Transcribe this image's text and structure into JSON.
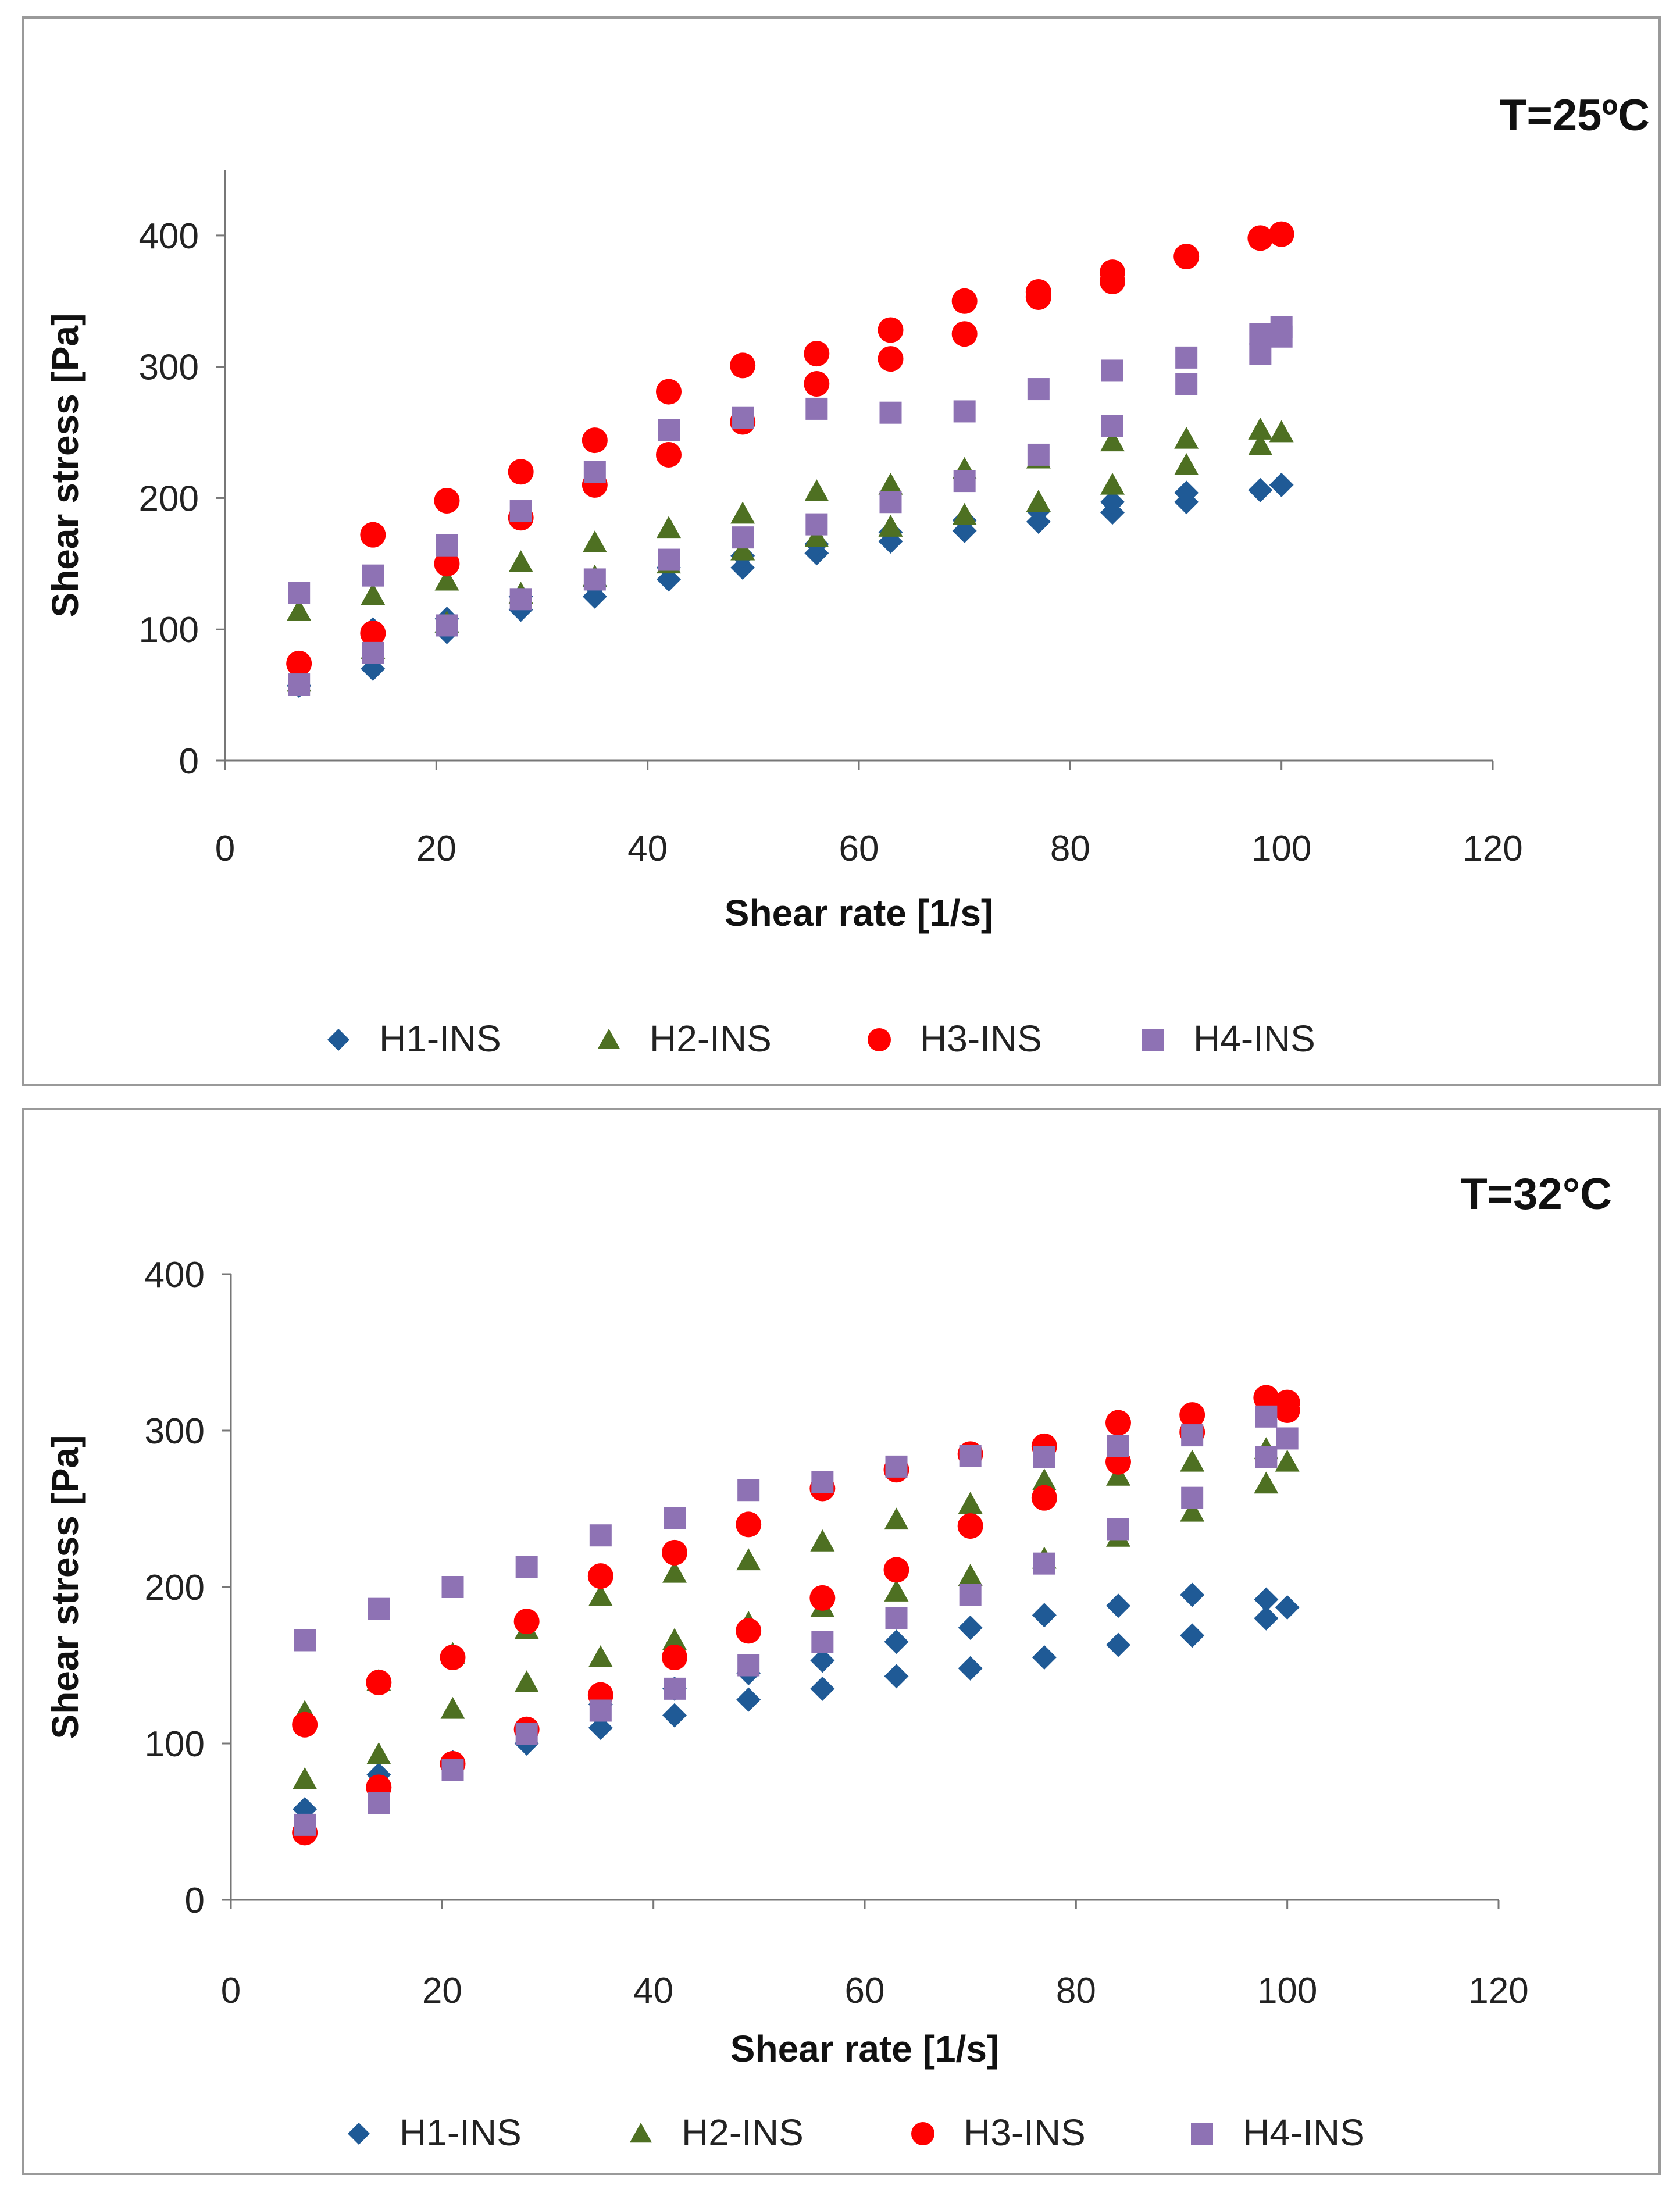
{
  "colors": {
    "H1-INS": "#1f5a96",
    "H2-INS": "#4e7022",
    "H3-INS": "#ff0000",
    "H4-INS": "#8e72b4"
  },
  "markers": {
    "H1-INS": "diamond",
    "H2-INS": "triangle",
    "H3-INS": "circle",
    "H4-INS": "square"
  },
  "chart_data": [
    {
      "type": "scatter",
      "annotation": "T=25ºC",
      "xlabel": "Shear rate [1/s]",
      "ylabel": "Shear stress [Pa]",
      "xlim": [
        0,
        120
      ],
      "ylim": [
        0,
        450
      ],
      "xticks": [
        0,
        20,
        40,
        60,
        80,
        100,
        120
      ],
      "yticks": [
        0,
        100,
        200,
        300,
        400
      ],
      "legend_position": "bottom",
      "series": [
        {
          "name": "H1-INS",
          "points": [
            [
              7,
              57
            ],
            [
              14,
              70
            ],
            [
              14,
              100
            ],
            [
              21,
              98
            ],
            [
              21,
              108
            ],
            [
              28,
              115
            ],
            [
              28,
              125
            ],
            [
              35,
              125
            ],
            [
              35,
              133
            ],
            [
              42,
              138
            ],
            [
              42,
              147
            ],
            [
              49,
              147
            ],
            [
              49,
              156
            ],
            [
              56,
              158
            ],
            [
              56,
              165
            ],
            [
              63,
              167
            ],
            [
              63,
              174
            ],
            [
              70,
              175
            ],
            [
              70,
              183
            ],
            [
              77,
              182
            ],
            [
              77,
              190
            ],
            [
              84,
              189
            ],
            [
              84,
              197
            ],
            [
              91,
              197
            ],
            [
              91,
              204
            ],
            [
              98,
              206
            ],
            [
              100,
              210
            ]
          ]
        },
        {
          "name": "H2-INS",
          "points": [
            [
              7,
              114
            ],
            [
              14,
              126
            ],
            [
              21,
              137
            ],
            [
              28,
              151
            ],
            [
              35,
              166
            ],
            [
              42,
              177
            ],
            [
              49,
              188
            ],
            [
              56,
              205
            ],
            [
              63,
              210
            ],
            [
              70,
              222
            ],
            [
              77,
              230
            ],
            [
              84,
              243
            ],
            [
              91,
              245
            ],
            [
              98,
              252
            ],
            [
              100,
              250
            ],
            [
              98,
              240
            ],
            [
              91,
              225
            ],
            [
              84,
              210
            ],
            [
              77,
              197
            ],
            [
              70,
              187
            ],
            [
              63,
              178
            ],
            [
              56,
              170
            ],
            [
              49,
              160
            ],
            [
              42,
              150
            ],
            [
              35,
              140
            ],
            [
              28,
              127
            ],
            [
              21,
              105
            ],
            [
              14,
              85
            ],
            [
              7,
              60
            ]
          ]
        },
        {
          "name": "H3-INS",
          "points": [
            [
              7,
              74
            ],
            [
              14,
              97
            ],
            [
              14,
              172
            ],
            [
              21,
              150
            ],
            [
              21,
              198
            ],
            [
              28,
              185
            ],
            [
              28,
              220
            ],
            [
              35,
              210
            ],
            [
              35,
              244
            ],
            [
              42,
              233
            ],
            [
              42,
              281
            ],
            [
              49,
              258
            ],
            [
              49,
              301
            ],
            [
              56,
              287
            ],
            [
              56,
              310
            ],
            [
              63,
              306
            ],
            [
              63,
              328
            ],
            [
              70,
              325
            ],
            [
              70,
              350
            ],
            [
              77,
              353
            ],
            [
              77,
              357
            ],
            [
              84,
              365
            ],
            [
              84,
              372
            ],
            [
              91,
              384
            ],
            [
              98,
              398
            ],
            [
              100,
              401
            ]
          ]
        },
        {
          "name": "H4-INS",
          "points": [
            [
              7,
              58
            ],
            [
              7,
              128
            ],
            [
              14,
              82
            ],
            [
              14,
              141
            ],
            [
              21,
              103
            ],
            [
              21,
              164
            ],
            [
              28,
              123
            ],
            [
              28,
              190
            ],
            [
              35,
              138
            ],
            [
              35,
              220
            ],
            [
              42,
              153
            ],
            [
              42,
              252
            ],
            [
              49,
              170
            ],
            [
              49,
              261
            ],
            [
              56,
              180
            ],
            [
              56,
              268
            ],
            [
              63,
              197
            ],
            [
              63,
              265
            ],
            [
              70,
              213
            ],
            [
              70,
              266
            ],
            [
              77,
              233
            ],
            [
              77,
              283
            ],
            [
              84,
              255
            ],
            [
              84,
              297
            ],
            [
              91,
              287
            ],
            [
              91,
              307
            ],
            [
              98,
              310
            ],
            [
              98,
              325
            ],
            [
              100,
              323
            ],
            [
              100,
              330
            ]
          ]
        }
      ]
    },
    {
      "type": "scatter",
      "annotation": "T=32°C",
      "xlabel": "Shear rate [1/s]",
      "ylabel": "Shear stress [Pa]",
      "xlim": [
        0,
        120
      ],
      "ylim": [
        0,
        400
      ],
      "xticks": [
        0,
        20,
        40,
        60,
        80,
        100,
        120
      ],
      "yticks": [
        0,
        100,
        200,
        300,
        400
      ],
      "legend_position": "bottom",
      "series": [
        {
          "name": "H1-INS",
          "points": [
            [
              7,
              58
            ],
            [
              14,
              80
            ],
            [
              21,
              88
            ],
            [
              28,
              100
            ],
            [
              35,
              110
            ],
            [
              42,
              118
            ],
            [
              49,
              128
            ],
            [
              56,
              135
            ],
            [
              63,
              143
            ],
            [
              70,
              148
            ],
            [
              77,
              155
            ],
            [
              84,
              163
            ],
            [
              91,
              169
            ],
            [
              98,
              180
            ],
            [
              100,
              187
            ],
            [
              98,
              192
            ],
            [
              91,
              195
            ],
            [
              84,
              188
            ],
            [
              77,
              182
            ],
            [
              70,
              174
            ],
            [
              63,
              165
            ],
            [
              56,
              153
            ],
            [
              49,
              145
            ],
            [
              42,
              135
            ],
            [
              35,
              125
            ],
            [
              28,
              108
            ]
          ]
        },
        {
          "name": "H2-INS",
          "points": [
            [
              7,
              77
            ],
            [
              7,
              120
            ],
            [
              14,
              93
            ],
            [
              14,
              140
            ],
            [
              21,
              122
            ],
            [
              21,
              157
            ],
            [
              28,
              139
            ],
            [
              28,
              173
            ],
            [
              35,
              155
            ],
            [
              35,
              194
            ],
            [
              42,
              166
            ],
            [
              42,
              209
            ],
            [
              49,
              177
            ],
            [
              49,
              217
            ],
            [
              56,
              187
            ],
            [
              56,
              229
            ],
            [
              63,
              197
            ],
            [
              63,
              243
            ],
            [
              70,
              207
            ],
            [
              70,
              253
            ],
            [
              77,
              218
            ],
            [
              77,
              268
            ],
            [
              84,
              232
            ],
            [
              84,
              271
            ],
            [
              91,
              248
            ],
            [
              91,
              280
            ],
            [
              98,
              266
            ],
            [
              98,
              288
            ],
            [
              100,
              280
            ]
          ]
        },
        {
          "name": "H3-INS",
          "points": [
            [
              7,
              43
            ],
            [
              7,
              112
            ],
            [
              14,
              72
            ],
            [
              14,
              139
            ],
            [
              21,
              87
            ],
            [
              21,
              155
            ],
            [
              28,
              109
            ],
            [
              28,
              178
            ],
            [
              35,
              131
            ],
            [
              35,
              207
            ],
            [
              42,
              155
            ],
            [
              42,
              222
            ],
            [
              49,
              172
            ],
            [
              49,
              240
            ],
            [
              56,
              193
            ],
            [
              56,
              263
            ],
            [
              63,
              211
            ],
            [
              63,
              275
            ],
            [
              70,
              239
            ],
            [
              70,
              285
            ],
            [
              77,
              257
            ],
            [
              77,
              290
            ],
            [
              84,
              280
            ],
            [
              84,
              305
            ],
            [
              91,
              299
            ],
            [
              91,
              310
            ],
            [
              98,
              321
            ],
            [
              100,
              313
            ],
            [
              100,
              318
            ]
          ]
        },
        {
          "name": "H4-INS",
          "points": [
            [
              7,
              48
            ],
            [
              7,
              166
            ],
            [
              14,
              62
            ],
            [
              14,
              186
            ],
            [
              21,
              83
            ],
            [
              21,
              200
            ],
            [
              28,
              106
            ],
            [
              28,
              213
            ],
            [
              35,
              121
            ],
            [
              35,
              233
            ],
            [
              42,
              135
            ],
            [
              42,
              244
            ],
            [
              49,
              150
            ],
            [
              49,
              262
            ],
            [
              56,
              165
            ],
            [
              56,
              267
            ],
            [
              63,
              180
            ],
            [
              63,
              277
            ],
            [
              70,
              195
            ],
            [
              70,
              284
            ],
            [
              77,
              215
            ],
            [
              77,
              283
            ],
            [
              84,
              237
            ],
            [
              84,
              290
            ],
            [
              91,
              257
            ],
            [
              91,
              297
            ],
            [
              98,
              283
            ],
            [
              98,
              309
            ],
            [
              100,
              295
            ]
          ]
        }
      ]
    }
  ]
}
